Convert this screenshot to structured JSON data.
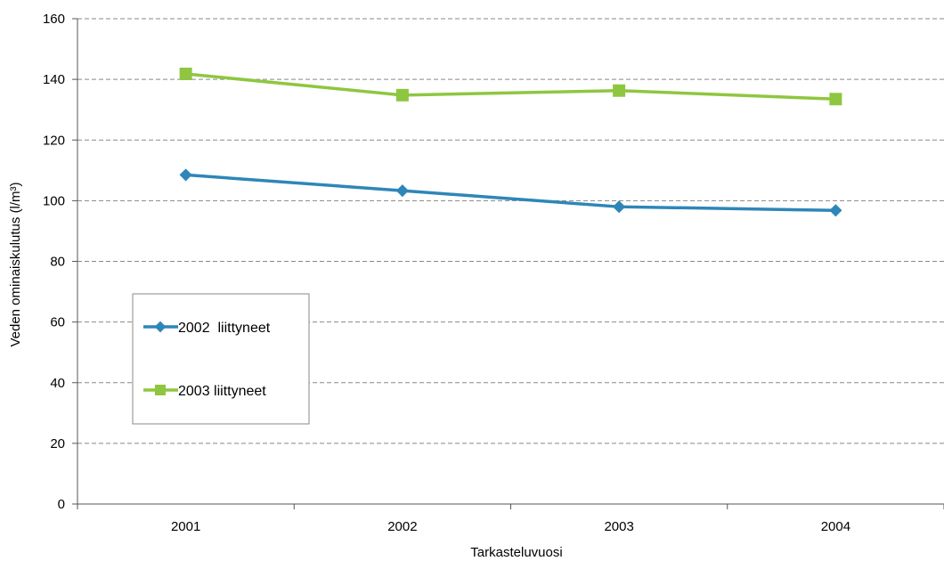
{
  "chart_data": {
    "type": "line",
    "categories": [
      "2001",
      "2002",
      "2003",
      "2004"
    ],
    "series": [
      {
        "name": "2002  liittyneet",
        "values": [
          108.5,
          103.3,
          98.0,
          96.8
        ],
        "color": "#2e86b8",
        "marker": "diamond"
      },
      {
        "name": "2003 liittyneet",
        "values": [
          141.8,
          134.8,
          136.3,
          133.5
        ],
        "color": "#8fc640",
        "marker": "square"
      }
    ],
    "xlabel": "Tarkasteluvuosi",
    "ylabel": "Veden ominaiskulutus (l/m³)",
    "ylim": [
      0,
      160
    ],
    "yticks": [
      0,
      20,
      40,
      60,
      80,
      100,
      120,
      140,
      160
    ],
    "grid": true,
    "legend_position": "left"
  }
}
